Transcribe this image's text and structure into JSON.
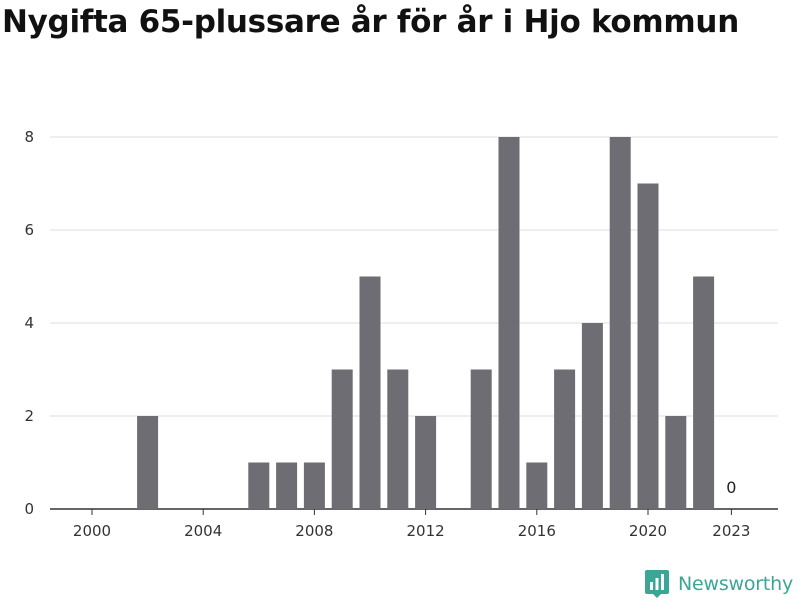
{
  "chart_data": {
    "type": "bar",
    "title": "Nygifta 65-plussare år för år i Hjo kommun",
    "x": [
      2000,
      2001,
      2002,
      2003,
      2004,
      2005,
      2006,
      2007,
      2008,
      2009,
      2010,
      2011,
      2012,
      2013,
      2014,
      2015,
      2016,
      2017,
      2018,
      2019,
      2020,
      2021,
      2022,
      2023
    ],
    "values": [
      0,
      0,
      2,
      0,
      0,
      0,
      1,
      1,
      1,
      3,
      5,
      3,
      2,
      0,
      3,
      8,
      1,
      3,
      4,
      8,
      7,
      2,
      5,
      0
    ],
    "x_ticks": [
      "2000",
      "2004",
      "2008",
      "2012",
      "2016",
      "2020",
      "2023"
    ],
    "y_ticks": [
      "0",
      "2",
      "4",
      "6",
      "8"
    ],
    "ylim": [
      0,
      8
    ],
    "data_labels": [
      {
        "x": 2023,
        "text": "0"
      }
    ],
    "grid": true,
    "bar_color": "#6e6d73"
  },
  "branding": {
    "name": "Newsworthy",
    "color": "#3aa695"
  }
}
